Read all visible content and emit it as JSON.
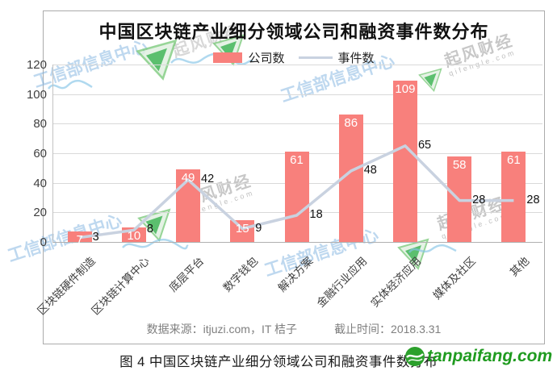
{
  "title": "中国区块链产业细分领域公司和融资事件数分布",
  "legend": {
    "company_label": "公司数",
    "event_label": "事件数"
  },
  "chart_data": {
    "type": "combo",
    "title": "中国区块链产业细分领域公司和融资事件数分布",
    "categories": [
      "区块链硬件制造",
      "区块链计算中心",
      "底层平台",
      "数字钱包",
      "解决方案",
      "金融行业应用",
      "实体经济应用",
      "媒体及社区",
      "其他"
    ],
    "series": [
      {
        "name": "公司数",
        "type": "bar",
        "color": "#f8807c",
        "values": [
          7,
          10,
          49,
          15,
          61,
          86,
          109,
          58,
          61
        ]
      },
      {
        "name": "事件数",
        "type": "line",
        "color": "#c9d2e0",
        "values": [
          3,
          8,
          42,
          9,
          18,
          48,
          65,
          28,
          28
        ]
      }
    ],
    "ylim": [
      0,
      120
    ],
    "ytick_step": 20,
    "grid": true,
    "legend_position": "top-center"
  },
  "footer": {
    "source": "数据来源：itjuzi.com，IT 桔子",
    "cutoff": "截止时间：2018.3.31"
  },
  "caption": "图 4 中国区块链产业细分领域公司和融资事件数分布",
  "watermarks": {
    "ministry": "工信部信息中心",
    "qifeng": "起风财经",
    "qifeng_url": "qifengle.com"
  },
  "logo": {
    "text": "tanpaifang.com"
  },
  "colors": {
    "bar": "#f8807c",
    "line": "#c9d2e0",
    "logo_green": "#1f9b1f"
  }
}
